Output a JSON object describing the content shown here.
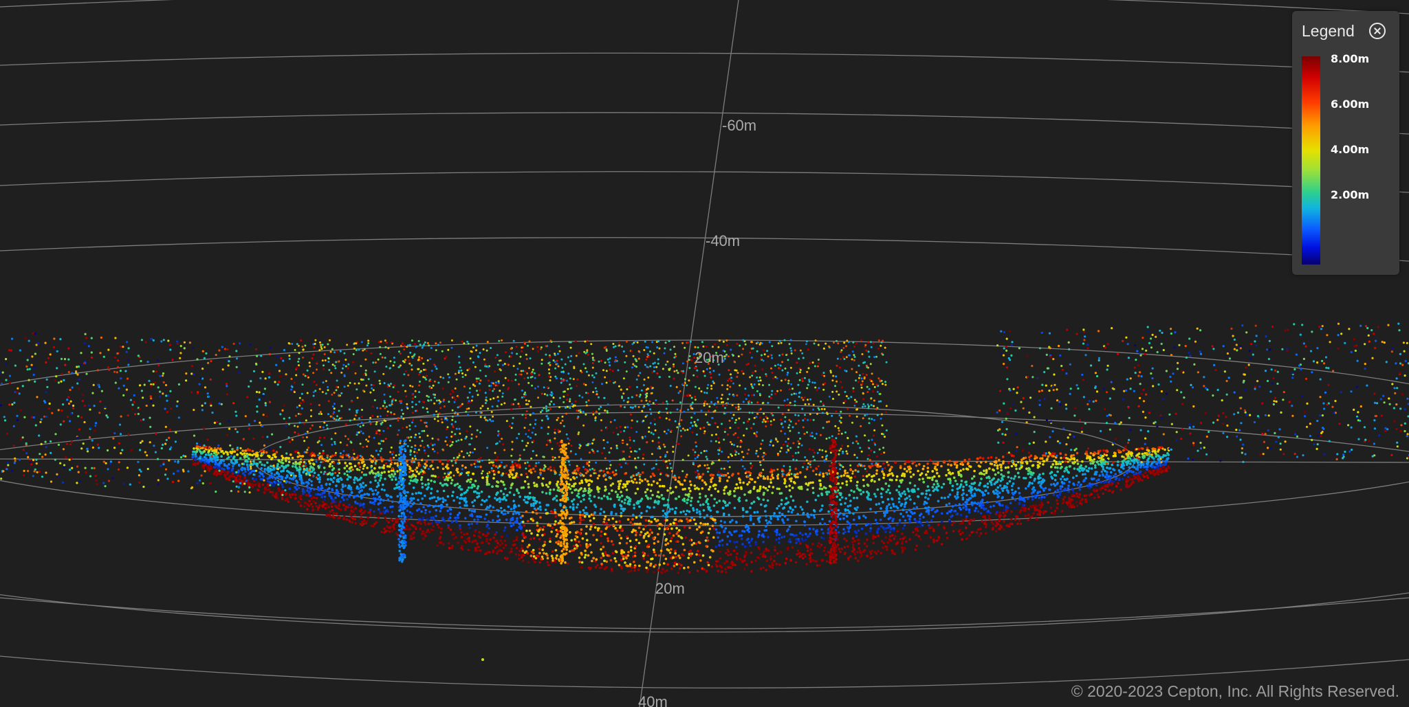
{
  "viewer": {
    "range_labels": [
      "-60m",
      "-40m",
      "20m",
      "20m",
      "40m"
    ]
  },
  "legend": {
    "title": "Legend",
    "close_icon": "close-circle-icon",
    "ticks": [
      "8.00m",
      "6.00m",
      "4.00m",
      "2.00m"
    ],
    "colors": [
      "#7a0000",
      "#d00000",
      "#ff9a00",
      "#e6e000",
      "#30d08a",
      "#10b4e0",
      "#0a5bff",
      "#06006e"
    ]
  },
  "footer": {
    "copyright": "© 2020-2023 Cepton, Inc. All Rights Reserved."
  }
}
